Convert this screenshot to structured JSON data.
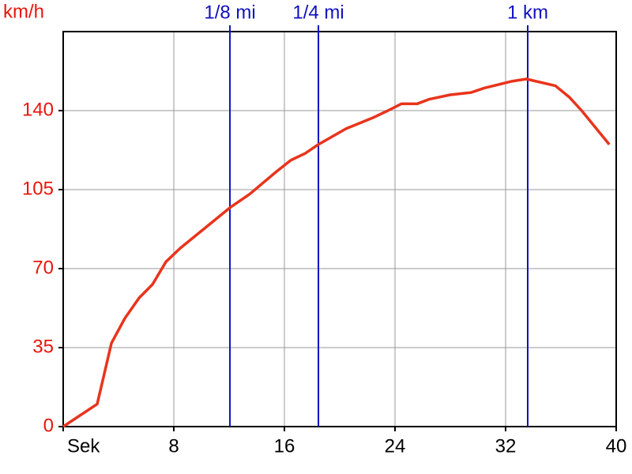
{
  "chart_data": {
    "type": "line",
    "y_label": "km/h",
    "x": [
      0,
      2.46,
      3.49,
      4.46,
      5.49,
      6.46,
      7.43,
      8.46,
      10.46,
      12.06,
      13.49,
      15.43,
      16.46,
      17.49,
      18.46,
      20.46,
      22.46,
      23.49,
      24.46,
      25.6,
      26.46,
      28,
      29.5,
      30.46,
      32.46,
      33.5,
      35.6,
      36.6,
      37.5,
      39.5
    ],
    "values": [
      0,
      10,
      37,
      48,
      57,
      63,
      73,
      79,
      89,
      97,
      103,
      113,
      118,
      121,
      125,
      132,
      137,
      140,
      143,
      143,
      145,
      147,
      148,
      150,
      153,
      154,
      151,
      146,
      140,
      125
    ],
    "color": "#e8341c",
    "xlim": [
      0,
      40
    ],
    "xticks": [
      {
        "value": 0,
        "label": "Sek"
      },
      8,
      16,
      24,
      32,
      40
    ],
    "ylim": [
      0,
      175
    ],
    "yticks": [
      0,
      35,
      70,
      105,
      140
    ],
    "grid": true,
    "y_tick_color": "#e8150c",
    "markers": [
      {
        "label": "1/8 mi",
        "x": 12.06
      },
      {
        "label": "1/4 mi",
        "x": 18.46
      },
      {
        "label": "1 km",
        "x": 33.6
      }
    ],
    "marker_color": "#1010c0"
  }
}
